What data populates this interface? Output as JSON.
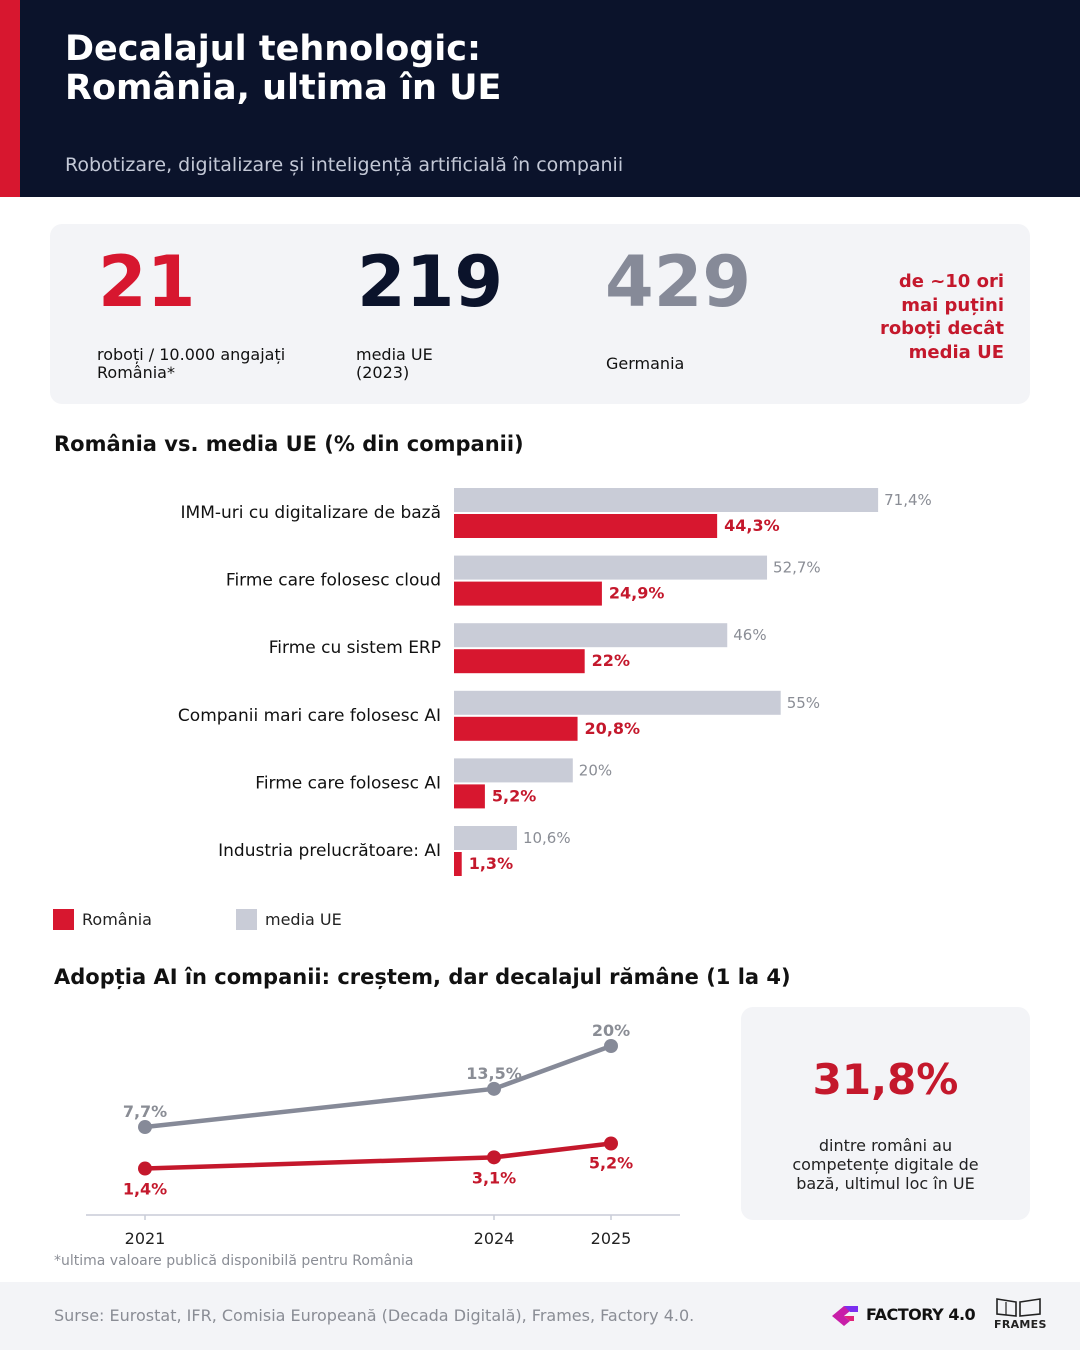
{
  "header": {
    "title_line1": "Decalajul tehnologic:",
    "title_line2": "România, ultima în UE",
    "subtitle": "Robotizare, digitalizare și inteligență artificială în companii",
    "background_color": "#0b132b",
    "accent_color": "#d7172f"
  },
  "stats": {
    "romania": {
      "value": "21",
      "label_line1": "roboți / 10.000 angajați",
      "label_line2": "România*",
      "color": "#d7172f"
    },
    "eu": {
      "value": "219",
      "label_line1": "media UE",
      "label_line2": "(2023)",
      "color": "#0b132b"
    },
    "germany": {
      "value": "429",
      "label_line1": "Germania",
      "color": "#868a98"
    },
    "callout_lines": [
      "de ~10 ori",
      "mai puțini",
      "roboți decât",
      "media UE"
    ]
  },
  "bar_section_title": "România vs. media UE (% din companii)",
  "line_section_title": "Adopția AI în companii: creștem, dar decalajul rămâne (1 la 4)",
  "legend": {
    "romania": "România",
    "eu": "media UE"
  },
  "colors": {
    "romania": "#d7172f",
    "romania_text": "#c4182c",
    "eu_bar": "#c9ccd7",
    "eu_line": "#868a98",
    "eu_text": "#8a8d95"
  },
  "chart_data": [
    {
      "type": "bar",
      "orientation": "horizontal",
      "title": "România vs. media UE (% din companii)",
      "categories": [
        "IMM-uri cu digitalizare de bază",
        "Firme care folosesc cloud",
        "Firme cu sistem ERP",
        "Companii mari care folosesc AI",
        "Firme care folosesc AI",
        "Industria prelucrătoare: AI"
      ],
      "series": [
        {
          "name": "media UE",
          "values": [
            71.4,
            52.7,
            46,
            55,
            20,
            10.6
          ],
          "labels": [
            "71,4%",
            "52,7%",
            "46%",
            "55%",
            "20%",
            "10,6%"
          ],
          "color": "#c9ccd7"
        },
        {
          "name": "România",
          "values": [
            44.3,
            24.9,
            22,
            20.8,
            5.2,
            1.3
          ],
          "labels": [
            "44,3%",
            "24,9%",
            "22%",
            "20,8%",
            "5,2%",
            "1,3%"
          ],
          "color": "#d7172f"
        }
      ],
      "xlim": [
        0,
        100
      ],
      "grid": false,
      "legend_position": "bottom-left"
    },
    {
      "type": "line",
      "title": "Adopția AI în companii: creștem, dar decalajul rămâne (1 la 4)",
      "x": [
        2021,
        2024,
        2025
      ],
      "x_labels": [
        "2021",
        "2024",
        "2025"
      ],
      "series": [
        {
          "name": "media UE",
          "values": [
            7.7,
            13.5,
            20
          ],
          "labels": [
            "7,7%",
            "13,5%",
            "20%"
          ],
          "color": "#868a98"
        },
        {
          "name": "România",
          "values": [
            1.4,
            3.1,
            5.2
          ],
          "labels": [
            "1,4%",
            "3,1%",
            "5,2%"
          ],
          "color": "#c4182c"
        }
      ],
      "ylim": [
        -5.5,
        20
      ],
      "grid": false
    }
  ],
  "skills": {
    "value": "31,8%",
    "text_line1": "dintre români au",
    "text_line2": "competențe digitale de",
    "text_line3": "bază, ultimul loc în UE"
  },
  "footnote": "*ultima valoare publică disponibilă pentru România",
  "footer": {
    "sources": "Surse: Eurostat, IFR, Comisia Europeană (Decada Digitală), Frames, Factory 4.0.",
    "logo_factory": "FACTORY 4.0",
    "logo_frames": "FRAMES"
  }
}
